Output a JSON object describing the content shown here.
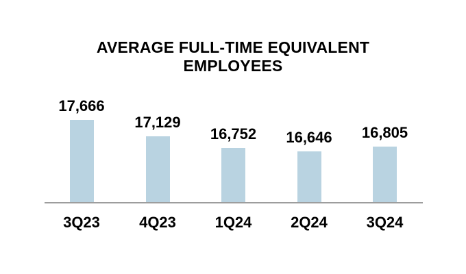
{
  "title": {
    "line1": "AVERAGE FULL-TIME EQUIVALENT",
    "line2": "EMPLOYEES"
  },
  "chart_data": {
    "type": "bar",
    "title": "AVERAGE FULL-TIME EQUIVALENT EMPLOYEES",
    "categories": [
      "3Q23",
      "4Q23",
      "1Q24",
      "2Q24",
      "3Q24"
    ],
    "values": [
      17666,
      17129,
      16752,
      16646,
      16805
    ],
    "value_labels": [
      "17,666",
      "17,129",
      "16,752",
      "16,646",
      "16,805"
    ],
    "xlabel": "",
    "ylabel": "",
    "ylim": [
      15000,
      17800
    ],
    "grid": false,
    "legend": false,
    "bar_color": "#b9d3e1",
    "axis_line_color": "#9d9d9d",
    "text_color": "#000000",
    "background_color": "#ffffff"
  }
}
